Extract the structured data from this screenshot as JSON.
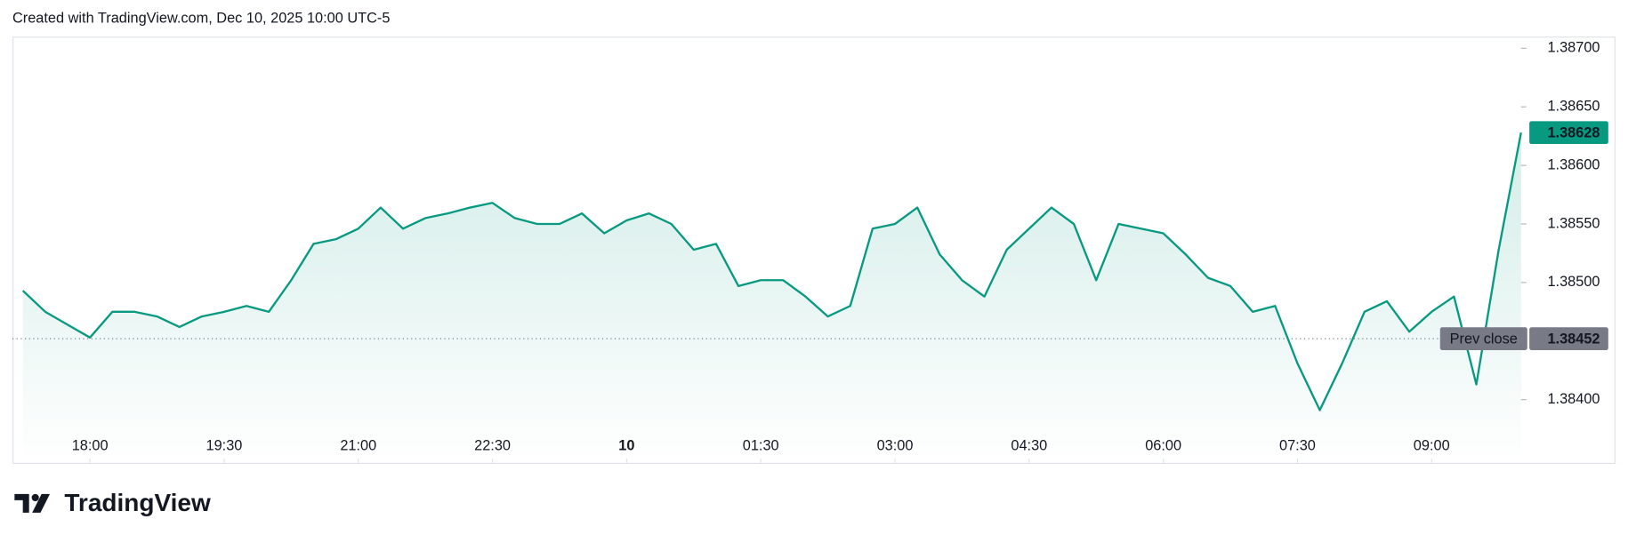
{
  "header": "Created with TradingView.com, Dec 10, 2025 10:00 UTC-5",
  "brand": "TradingView",
  "chart_data": {
    "type": "line",
    "x": [
      "17:15",
      "17:30",
      "17:45",
      "18:00",
      "18:15",
      "18:30",
      "18:45",
      "19:00",
      "19:15",
      "19:30",
      "19:45",
      "20:00",
      "20:15",
      "20:30",
      "20:45",
      "21:00",
      "21:15",
      "21:30",
      "21:45",
      "22:00",
      "22:15",
      "22:30",
      "22:45",
      "23:00",
      "23:15",
      "23:30",
      "23:45",
      "00:00",
      "00:15",
      "00:30",
      "00:45",
      "01:00",
      "01:15",
      "01:30",
      "01:45",
      "02:00",
      "02:15",
      "02:30",
      "02:45",
      "03:00",
      "03:15",
      "03:30",
      "03:45",
      "04:00",
      "04:15",
      "04:30",
      "04:45",
      "05:00",
      "05:15",
      "05:30",
      "05:45",
      "06:00",
      "06:15",
      "06:30",
      "06:45",
      "07:00",
      "07:15",
      "07:30",
      "07:45",
      "08:00",
      "08:15",
      "08:30",
      "08:45",
      "09:00",
      "09:15",
      "09:30",
      "09:45",
      "10:00"
    ],
    "series": [
      {
        "color": "#089981",
        "values": [
          1.38493,
          1.38475,
          1.38464,
          1.38453,
          1.38475,
          1.38475,
          1.38471,
          1.38462,
          1.38471,
          1.38475,
          1.3848,
          1.38475,
          1.38502,
          1.38533,
          1.38537,
          1.38546,
          1.38564,
          1.38546,
          1.38555,
          1.38559,
          1.38564,
          1.38568,
          1.38555,
          1.3855,
          1.3855,
          1.38559,
          1.38542,
          1.38553,
          1.38559,
          1.3855,
          1.38528,
          1.38533,
          1.38497,
          1.38502,
          1.38502,
          1.38488,
          1.38471,
          1.3848,
          1.38546,
          1.3855,
          1.38564,
          1.38524,
          1.38502,
          1.38488,
          1.38528,
          1.38546,
          1.38564,
          1.3855,
          1.38502,
          1.3855,
          1.38546,
          1.38542,
          1.38524,
          1.38504,
          1.38497,
          1.38475,
          1.3848,
          1.38431,
          1.38391,
          1.38431,
          1.38475,
          1.38484,
          1.38458,
          1.38475,
          1.38488,
          1.38413,
          1.38528,
          1.38628
        ]
      }
    ],
    "xlim": [
      "17:08",
      "10:00"
    ],
    "xticks": [
      "18:00",
      "19:30",
      "21:00",
      "22:30",
      {
        "value": "00:00",
        "label": "10"
      },
      "01:30",
      "03:00",
      "04:30",
      "06:00",
      "07:30",
      "09:00"
    ],
    "ylim": [
      1.38346,
      1.3871
    ],
    "yticks": [
      {
        "value": 1.384,
        "label": "1.38400"
      },
      {
        "value": 1.385,
        "label": "1.38500"
      },
      {
        "value": 1.3855,
        "label": "1.38550"
      },
      {
        "value": 1.386,
        "label": "1.38600"
      },
      {
        "value": 1.3865,
        "label": "1.38650"
      },
      {
        "value": 1.387,
        "label": "1.38700"
      }
    ],
    "prev_close_label": "Prev close",
    "prev_close": 1.38452
  }
}
